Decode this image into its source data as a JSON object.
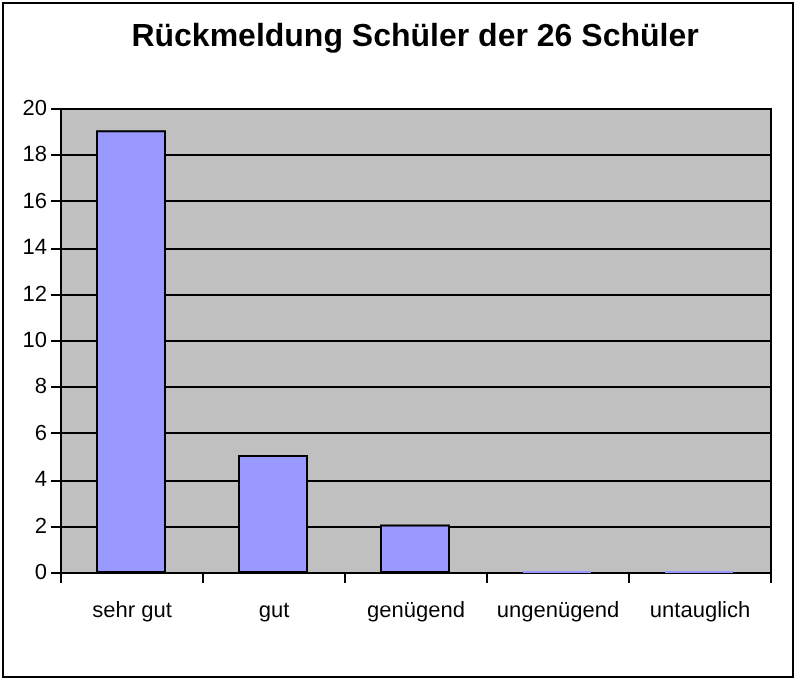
{
  "chart_data": {
    "type": "bar",
    "title": "Rückmeldung Schüler der 26 Schüler",
    "categories": [
      "sehr gut",
      "gut",
      "genügend",
      "ungenügend",
      "untauglich"
    ],
    "values": [
      19,
      5,
      2,
      0,
      0
    ],
    "color": "#9999ff",
    "ylim": [
      0,
      20
    ],
    "yticks": [
      0,
      2,
      4,
      6,
      8,
      10,
      12,
      14,
      16,
      18,
      20
    ],
    "grid": "y"
  }
}
